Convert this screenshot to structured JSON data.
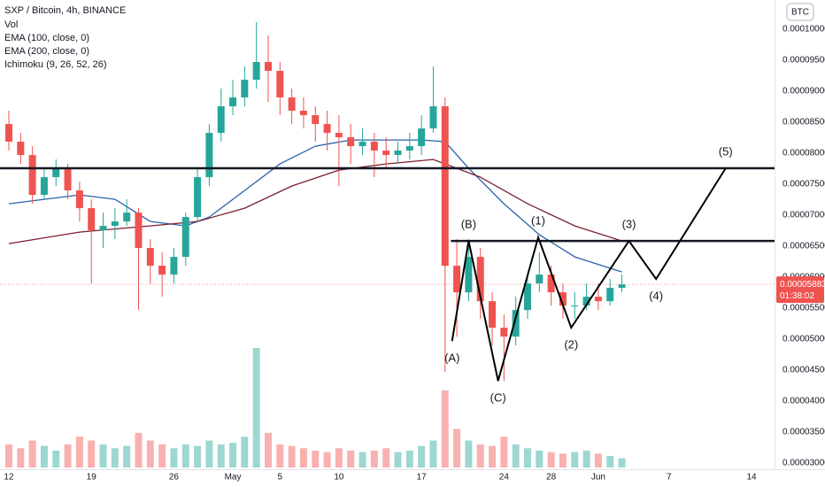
{
  "chart_data": {
    "type": "candlestick",
    "title": "SXP / Bitcoin, 4h, BINANCE",
    "volume_label": "Vol",
    "ichimoku_label": "Ichimoku (9, 26, 52, 26)",
    "currency": "BTC",
    "up_color": "#26a69a",
    "down_color": "#ef5350",
    "x": [
      0,
      1,
      2,
      3,
      4,
      5,
      6,
      7,
      8,
      9,
      10,
      11,
      12,
      13,
      14,
      15,
      16,
      17,
      18,
      19,
      20,
      21,
      22,
      23,
      24,
      25,
      26,
      27,
      28,
      29,
      30,
      31,
      32,
      33,
      34,
      35,
      36,
      37,
      38,
      39,
      40,
      41,
      42,
      43,
      44,
      45,
      46,
      47,
      48,
      49,
      50,
      51,
      52
    ],
    "open": [
      8.47e-05,
      8.185e-05,
      7.97e-05,
      7.327e-05,
      7.613e-05,
      7.756e-05,
      7.399e-05,
      7.113e-05,
      6.756e-05,
      6.827e-05,
      6.898e-05,
      7.041e-05,
      6.47e-05,
      6.184e-05,
      6.041e-05,
      6.327e-05,
      6.97e-05,
      7.613e-05,
      8.327e-05,
      8.756e-05,
      8.899e-05,
      9.185e-05,
      9.471e-05,
      9.328e-05,
      8.899e-05,
      8.685e-05,
      8.613e-05,
      8.47e-05,
      8.327e-05,
      8.256e-05,
      8.113e-05,
      8.185e-05,
      8.042e-05,
      7.97e-05,
      8.042e-05,
      8.113e-05,
      8.399e-05,
      8.756e-05,
      6.184e-05,
      5.755e-05,
      6.327e-05,
      5.612e-05,
      5.184e-05,
      5.041e-05,
      5.469e-05,
      5.898e-05,
      6.041e-05,
      5.755e-05,
      5.541e-05,
      5.541e-05,
      5.684e-05,
      5.612e-05,
      5.827e-05
    ],
    "high": [
      8.685e-05,
      8.327e-05,
      8.113e-05,
      7.756e-05,
      7.899e-05,
      7.827e-05,
      7.542e-05,
      7.256e-05,
      7.041e-05,
      7.113e-05,
      7.256e-05,
      7.113e-05,
      6.613e-05,
      6.398e-05,
      6.47e-05,
      7.041e-05,
      7.756e-05,
      8.47e-05,
      9.042e-05,
      9.185e-05,
      9.399e-05,
      0.00010114,
      9.899e-05,
      9.471e-05,
      9.042e-05,
      8.899e-05,
      8.756e-05,
      8.685e-05,
      8.613e-05,
      8.47e-05,
      8.399e-05,
      8.327e-05,
      8.256e-05,
      8.185e-05,
      8.327e-05,
      8.613e-05,
      9.399e-05,
      8.899e-05,
      6.613e-05,
      6.613e-05,
      6.47e-05,
      5.755e-05,
      5.398e-05,
      5.684e-05,
      6.041e-05,
      6.398e-05,
      6.184e-05,
      5.898e-05,
      5.755e-05,
      5.898e-05,
      5.898e-05,
      5.97e-05,
      6.041e-05
    ],
    "low": [
      8.042e-05,
      7.827e-05,
      7.184e-05,
      7.256e-05,
      7.47e-05,
      7.256e-05,
      6.898e-05,
      5.898e-05,
      6.47e-05,
      6.613e-05,
      6.827e-05,
      5.469e-05,
      5.898e-05,
      5.684e-05,
      5.898e-05,
      6.184e-05,
      6.898e-05,
      7.47e-05,
      8.185e-05,
      8.613e-05,
      8.756e-05,
      9.042e-05,
      8.828e-05,
      8.613e-05,
      8.47e-05,
      8.399e-05,
      8.185e-05,
      8.042e-05,
      7.47e-05,
      7.827e-05,
      7.97e-05,
      7.613e-05,
      7.756e-05,
      7.827e-05,
      7.899e-05,
      7.97e-05,
      8.327e-05,
      4.469e-05,
      5.041e-05,
      5.612e-05,
      5.327e-05,
      4.898e-05,
      4.326e-05,
      4.898e-05,
      5.327e-05,
      5.755e-05,
      5.541e-05,
      5.327e-05,
      5.327e-05,
      5.469e-05,
      5.469e-05,
      5.541e-05,
      5.755e-05
    ],
    "close": [
      8.185e-05,
      7.97e-05,
      7.327e-05,
      7.613e-05,
      7.756e-05,
      7.399e-05,
      7.113e-05,
      6.756e-05,
      6.827e-05,
      6.898e-05,
      7.041e-05,
      6.47e-05,
      6.184e-05,
      6.041e-05,
      6.327e-05,
      6.97e-05,
      7.613e-05,
      8.327e-05,
      8.756e-05,
      8.899e-05,
      9.185e-05,
      9.471e-05,
      9.328e-05,
      8.899e-05,
      8.685e-05,
      8.613e-05,
      8.47e-05,
      8.327e-05,
      8.256e-05,
      8.113e-05,
      8.185e-05,
      8.042e-05,
      7.97e-05,
      8.042e-05,
      8.113e-05,
      8.399e-05,
      8.756e-05,
      6.184e-05,
      5.755e-05,
      6.327e-05,
      5.612e-05,
      5.184e-05,
      5.041e-05,
      5.469e-05,
      5.898e-05,
      6.041e-05,
      5.755e-05,
      5.541e-05,
      5.541e-05,
      5.684e-05,
      5.612e-05,
      5.827e-05,
      5.883e-05
    ],
    "volume": [
      30,
      25,
      35,
      28,
      22,
      30,
      40,
      35,
      30,
      25,
      28,
      45,
      35,
      30,
      25,
      30,
      28,
      35,
      30,
      32,
      40,
      155,
      45,
      30,
      28,
      25,
      22,
      20,
      25,
      22,
      20,
      22,
      25,
      20,
      22,
      28,
      35,
      100,
      50,
      35,
      30,
      28,
      40,
      30,
      25,
      22,
      20,
      18,
      20,
      22,
      18,
      15,
      12
    ],
    "overlays": [
      {
        "name": "EMA (100, close, 0)",
        "color": "#2962a8",
        "x": [
          0,
          3,
          6,
          9,
          12,
          15,
          17,
          20,
          23,
          26,
          29,
          32,
          35,
          37,
          39,
          42,
          45,
          48,
          52
        ],
        "values": [
          7.184e-05,
          7.256e-05,
          7.327e-05,
          7.256e-05,
          6.898e-05,
          6.827e-05,
          6.97e-05,
          7.399e-05,
          7.827e-05,
          8.113e-05,
          8.213e-05,
          8.213e-05,
          8.213e-05,
          8.185e-05,
          7.756e-05,
          7.184e-05,
          6.684e-05,
          6.327e-05,
          6.084e-05
        ]
      },
      {
        "name": "EMA (200, close, 0)",
        "color": "#7b1f2e",
        "x": [
          0,
          6,
          12,
          16,
          20,
          24,
          28,
          32,
          36,
          40,
          44,
          48,
          52
        ],
        "values": [
          6.541e-05,
          6.727e-05,
          6.827e-05,
          6.898e-05,
          7.113e-05,
          7.47e-05,
          7.727e-05,
          7.827e-05,
          7.899e-05,
          7.613e-05,
          7.184e-05,
          6.827e-05,
          6.584e-05
        ]
      }
    ],
    "levels": [
      {
        "value": 7.756e-05
      },
      {
        "value": 6.584e-05,
        "x_start": 37.5
      }
    ],
    "wave": {
      "color": "#000000",
      "x": [
        37.6,
        39.0,
        41.5,
        44.9,
        47.7,
        52.6,
        54.9,
        60.8
      ],
      "y": [
        4.969e-05,
        6.584e-05,
        4.326e-05,
        6.641e-05,
        5.184e-05,
        6.584e-05,
        5.97e-05,
        7.756e-05
      ],
      "labels": [
        "(A)",
        "(B)",
        "(C)",
        "(1)",
        "(2)",
        "(3)",
        "(4)",
        "(5)"
      ]
    },
    "last_price_label": "0.00005883",
    "countdown": "01:38:02",
    "xlim": [
      -0.75,
      64.95
    ],
    "xticks": [
      {
        "value": 0,
        "label": "12"
      },
      {
        "value": 7,
        "label": "19"
      },
      {
        "value": 14,
        "label": "26"
      },
      {
        "value": 19,
        "label": "May"
      },
      {
        "value": 23,
        "label": "5"
      },
      {
        "value": 28,
        "label": "10"
      },
      {
        "value": 35,
        "label": "17"
      },
      {
        "value": 42,
        "label": "24"
      },
      {
        "value": 46,
        "label": "28"
      },
      {
        "value": 50,
        "label": "Jun"
      },
      {
        "value": 56,
        "label": "7"
      },
      {
        "value": 63,
        "label": "14"
      }
    ],
    "ylim": [
      2.9e-05,
      0.00010471
    ],
    "yticks": [
      {
        "value": 0.0001,
        "label": "0.00010000"
      },
      {
        "value": 9.5e-05,
        "label": "0.00009500"
      },
      {
        "value": 9e-05,
        "label": "0.00009000"
      },
      {
        "value": 8.5e-05,
        "label": "0.00008500"
      },
      {
        "value": 8e-05,
        "label": "0.00008000"
      },
      {
        "value": 7.5e-05,
        "label": "0.00007500"
      },
      {
        "value": 7e-05,
        "label": "0.00007000"
      },
      {
        "value": 6.5e-05,
        "label": "0.00006500"
      },
      {
        "value": 6e-05,
        "label": "0.00006000"
      },
      {
        "value": 5.5e-05,
        "label": "0.00005500"
      },
      {
        "value": 5e-05,
        "label": "0.00005000"
      },
      {
        "value": 4.5e-05,
        "label": "0.00004500"
      },
      {
        "value": 4e-05,
        "label": "0.00004000"
      },
      {
        "value": 3.5e-05,
        "label": "0.00003500"
      },
      {
        "value": 3e-05,
        "label": "0.00003000"
      }
    ]
  }
}
